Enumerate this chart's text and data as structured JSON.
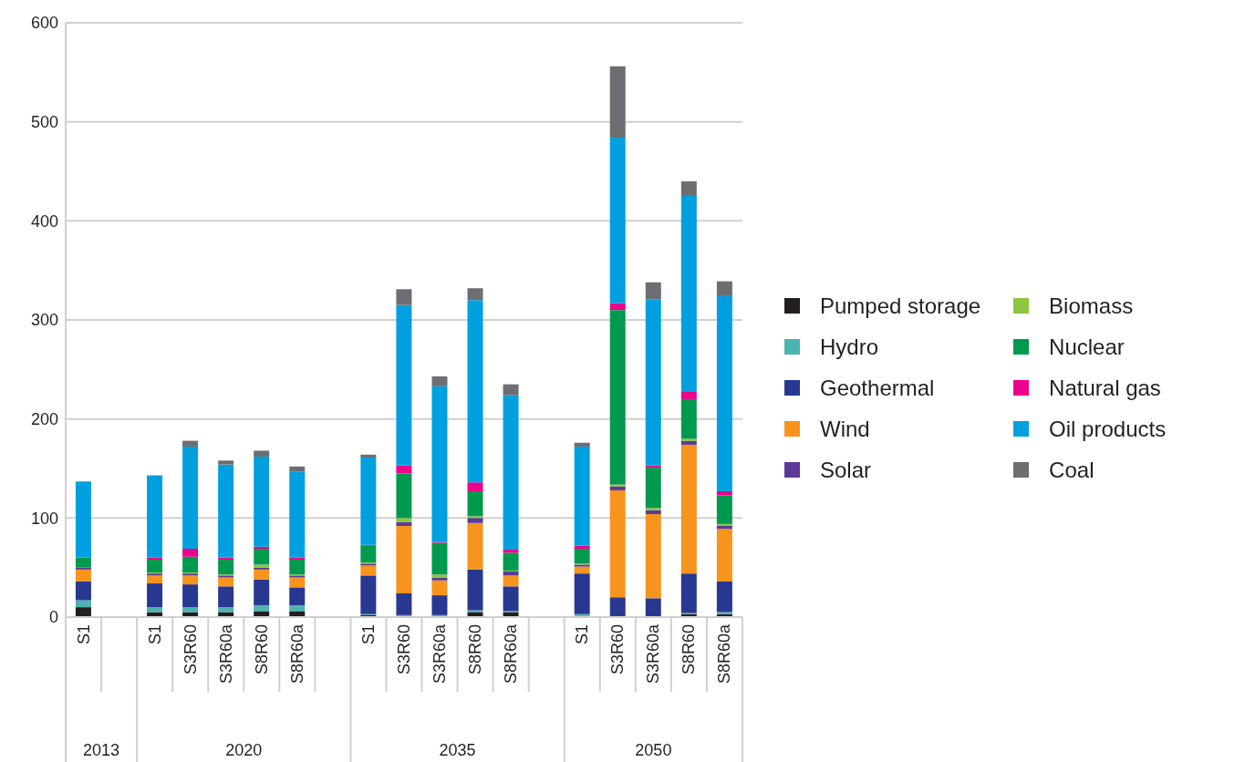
{
  "chart_data": {
    "type": "bar",
    "stacked": true,
    "categories": [
      "S1",
      null,
      "S1",
      "S3R60",
      "S3R60a",
      "S8R60",
      "S8R60a",
      null,
      "S1",
      "S3R60",
      "S3R60a",
      "S8R60",
      "S8R60a",
      null,
      "S1",
      "S3R60",
      "S3R60a",
      "S8R60",
      "S8R60a"
    ],
    "annotations": [
      "2013",
      "2020",
      "2035",
      "2050"
    ],
    "series": [
      {
        "name": "Pumped storage",
        "color": "#231f20",
        "values": [
          10,
          null,
          5,
          5,
          5,
          6,
          6,
          null,
          2,
          0,
          0,
          5,
          5,
          null,
          1,
          0,
          0,
          3,
          3
        ]
      },
      {
        "name": "Hydro",
        "color": "#4db3b0",
        "values": [
          7,
          null,
          5,
          5,
          5,
          6,
          6,
          null,
          1,
          2,
          2,
          2,
          1,
          null,
          2,
          0,
          0,
          1,
          2
        ]
      },
      {
        "name": "Geothermal",
        "color": "#283891",
        "values": [
          19,
          null,
          24,
          23,
          21,
          26,
          18,
          null,
          39,
          22,
          20,
          41,
          25,
          null,
          41,
          20,
          19,
          40,
          31
        ]
      },
      {
        "name": "Wind",
        "color": "#f7941d",
        "values": [
          12,
          null,
          8,
          9,
          9,
          10,
          10,
          null,
          10,
          68,
          15,
          47,
          11,
          null,
          7,
          108,
          85,
          130,
          53
        ]
      },
      {
        "name": "Solar",
        "color": "#5b3a96",
        "values": [
          2,
          null,
          2,
          2,
          2,
          2,
          2,
          null,
          2,
          4,
          3,
          5,
          4,
          null,
          2,
          4,
          4,
          4,
          3
        ]
      },
      {
        "name": "Biomass",
        "color": "#8dc63f",
        "values": [
          0,
          null,
          1,
          1,
          1,
          3,
          1,
          null,
          1,
          4,
          3,
          2,
          1,
          null,
          1,
          2,
          2,
          2,
          2
        ]
      },
      {
        "name": "Nuclear",
        "color": "#009a4e",
        "values": [
          10,
          null,
          13,
          16,
          15,
          16,
          15,
          null,
          17,
          45,
          32,
          25,
          18,
          null,
          15,
          176,
          41,
          40,
          29
        ]
      },
      {
        "name": "Natural gas",
        "color": "#ec008c",
        "values": [
          0,
          null,
          2,
          8,
          2,
          2,
          2,
          null,
          1,
          8,
          1,
          9,
          3,
          null,
          3,
          7,
          2,
          8,
          4
        ]
      },
      {
        "name": "Oil products",
        "color": "#00a0e0",
        "values": [
          77,
          null,
          83,
          103,
          94,
          91,
          87,
          null,
          88,
          162,
          157,
          184,
          156,
          null,
          100,
          167,
          168,
          198,
          197
        ]
      },
      {
        "name": "Coal",
        "color": "#6d6e71",
        "values": [
          0,
          null,
          0,
          6,
          4,
          6,
          5,
          null,
          3,
          16,
          10,
          12,
          11,
          null,
          4,
          72,
          17,
          14,
          15
        ]
      }
    ],
    "ylim": [
      0,
      600
    ],
    "yticks": [
      0,
      100,
      200,
      300,
      400,
      500,
      600
    ],
    "grid": "y",
    "legend": "right"
  }
}
